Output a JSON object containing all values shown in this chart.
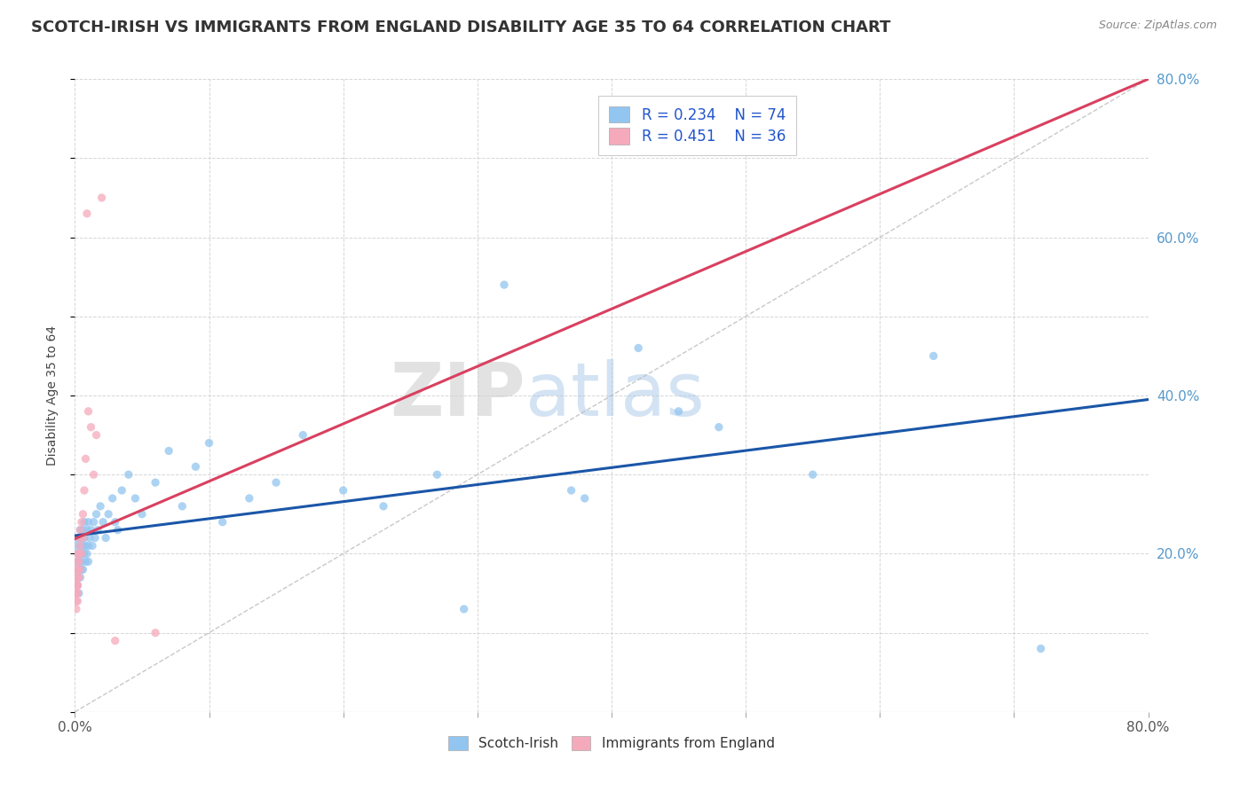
{
  "title": "SCOTCH-IRISH VS IMMIGRANTS FROM ENGLAND DISABILITY AGE 35 TO 64 CORRELATION CHART",
  "source": "Source: ZipAtlas.com",
  "ylabel": "Disability Age 35 to 64",
  "legend_label1": "Scotch-Irish",
  "legend_label2": "Immigrants from England",
  "r1": 0.234,
  "n1": 74,
  "r2": 0.451,
  "n2": 36,
  "xlim": [
    0.0,
    0.8
  ],
  "ylim": [
    0.0,
    0.8
  ],
  "color_blue": "#92C5F0",
  "color_pink": "#F5AABC",
  "color_blue_line": "#1A56A8",
  "color_pink_line": "#D94060",
  "watermark_zip": "ZIP",
  "watermark_atlas": "atlas",
  "title_fontsize": 13,
  "scatter_alpha": 0.75,
  "scatter_size": 45,
  "blue_x": [
    0.001,
    0.001,
    0.001,
    0.002,
    0.002,
    0.002,
    0.002,
    0.002,
    0.003,
    0.003,
    0.003,
    0.003,
    0.003,
    0.004,
    0.004,
    0.004,
    0.004,
    0.005,
    0.005,
    0.005,
    0.005,
    0.006,
    0.006,
    0.006,
    0.007,
    0.007,
    0.007,
    0.008,
    0.008,
    0.009,
    0.009,
    0.01,
    0.01,
    0.01,
    0.011,
    0.012,
    0.013,
    0.014,
    0.015,
    0.016,
    0.017,
    0.019,
    0.021,
    0.023,
    0.025,
    0.028,
    0.03,
    0.032,
    0.035,
    0.04,
    0.045,
    0.05,
    0.06,
    0.07,
    0.08,
    0.09,
    0.1,
    0.11,
    0.13,
    0.15,
    0.17,
    0.2,
    0.23,
    0.27,
    0.32,
    0.37,
    0.42,
    0.48,
    0.55,
    0.64,
    0.72,
    0.38,
    0.29,
    0.45
  ],
  "blue_y": [
    0.17,
    0.19,
    0.21,
    0.16,
    0.18,
    0.2,
    0.22,
    0.17,
    0.15,
    0.18,
    0.2,
    0.22,
    0.19,
    0.17,
    0.2,
    0.23,
    0.21,
    0.18,
    0.2,
    0.22,
    0.19,
    0.21,
    0.23,
    0.18,
    0.2,
    0.22,
    0.24,
    0.19,
    0.21,
    0.2,
    0.23,
    0.21,
    0.24,
    0.19,
    0.22,
    0.23,
    0.21,
    0.24,
    0.22,
    0.25,
    0.23,
    0.26,
    0.24,
    0.22,
    0.25,
    0.27,
    0.24,
    0.23,
    0.28,
    0.3,
    0.27,
    0.25,
    0.29,
    0.33,
    0.26,
    0.31,
    0.34,
    0.24,
    0.27,
    0.29,
    0.35,
    0.28,
    0.26,
    0.3,
    0.54,
    0.28,
    0.46,
    0.36,
    0.3,
    0.45,
    0.08,
    0.27,
    0.13,
    0.38
  ],
  "pink_x": [
    0.001,
    0.001,
    0.001,
    0.001,
    0.001,
    0.002,
    0.002,
    0.002,
    0.002,
    0.002,
    0.002,
    0.002,
    0.002,
    0.002,
    0.002,
    0.003,
    0.003,
    0.003,
    0.003,
    0.004,
    0.004,
    0.004,
    0.005,
    0.005,
    0.006,
    0.006,
    0.007,
    0.008,
    0.009,
    0.01,
    0.012,
    0.014,
    0.016,
    0.02,
    0.03,
    0.06
  ],
  "pink_y": [
    0.14,
    0.15,
    0.13,
    0.16,
    0.15,
    0.15,
    0.17,
    0.16,
    0.18,
    0.14,
    0.19,
    0.17,
    0.2,
    0.16,
    0.18,
    0.17,
    0.2,
    0.22,
    0.19,
    0.21,
    0.23,
    0.18,
    0.2,
    0.24,
    0.22,
    0.25,
    0.28,
    0.32,
    0.63,
    0.38,
    0.36,
    0.3,
    0.35,
    0.65,
    0.09,
    0.1
  ]
}
